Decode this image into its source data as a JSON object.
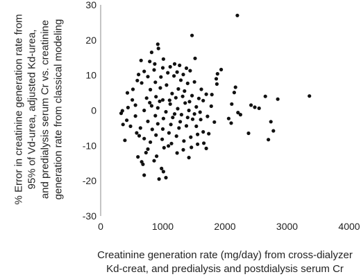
{
  "chart_data": {
    "type": "scatter",
    "title": "",
    "xlabel_lines": [
      "Creatinine generation rate (mg/day) from cross-dialyzer",
      "Kd-creat, and predialysis and postdialysis serum Cr"
    ],
    "ylabel_lines": [
      "% Error in creatinine generation rate from",
      "95% of Vd-urea, adjusted Kd-urea,",
      "and predialysis serum Cr vs. creatinine",
      "generation rate from classical modeling"
    ],
    "xlim": [
      0,
      4000
    ],
    "ylim": [
      -30,
      30
    ],
    "x_ticks": [
      0,
      1000,
      2000,
      3000,
      4000
    ],
    "y_ticks": [
      -30,
      -20,
      -10,
      0,
      10,
      20,
      30
    ],
    "grid": false,
    "legend": "none",
    "marker_color": "#111111",
    "points": [
      [
        2200,
        27
      ],
      [
        1470,
        21.3
      ],
      [
        920,
        18.8
      ],
      [
        930,
        17.6
      ],
      [
        820,
        16.5
      ],
      [
        790,
        13.9
      ],
      [
        1010,
        14.6
      ],
      [
        1520,
        14.8
      ],
      [
        650,
        14.2
      ],
      [
        1190,
        13.2
      ],
      [
        1270,
        12.8
      ],
      [
        1380,
        12.0
      ],
      [
        1940,
        11.6
      ],
      [
        1880,
        10.4
      ],
      [
        1860,
        9.0
      ],
      [
        1870,
        7.5
      ],
      [
        2170,
        6.6
      ],
      [
        2150,
        5.1
      ],
      [
        2110,
        1.8
      ],
      [
        2650,
        4.0
      ],
      [
        2850,
        3.2
      ],
      [
        3360,
        4.1
      ],
      [
        2420,
        1.5
      ],
      [
        2480,
        0.9
      ],
      [
        2550,
        0.6
      ],
      [
        2210,
        -0.6
      ],
      [
        2250,
        -1.2
      ],
      [
        2060,
        -2.3
      ],
      [
        2100,
        -3.6
      ],
      [
        2380,
        -6.5
      ],
      [
        2740,
        -3.2
      ],
      [
        2780,
        -5.8
      ],
      [
        2700,
        -8.3
      ],
      [
        350,
        -0.1
      ],
      [
        330,
        -0.8
      ],
      [
        360,
        -4.0
      ],
      [
        390,
        -8.5
      ],
      [
        420,
        -2.8
      ],
      [
        430,
        5.0
      ],
      [
        510,
        3.0
      ],
      [
        560,
        -1.6
      ],
      [
        580,
        -6.4
      ],
      [
        600,
        -13.2
      ],
      [
        620,
        -7.2
      ],
      [
        660,
        -14.6
      ],
      [
        680,
        -15.3
      ],
      [
        700,
        -18.4
      ],
      [
        730,
        -12.0
      ],
      [
        760,
        -11.0
      ],
      [
        860,
        -14.3
      ],
      [
        900,
        -13.0
      ],
      [
        940,
        -19.5
      ],
      [
        980,
        -16.5
      ],
      [
        1010,
        -17.4
      ],
      [
        1050,
        -19.1
      ],
      [
        1020,
        -10.6
      ],
      [
        1090,
        -10.1
      ],
      [
        1140,
        -9.4
      ],
      [
        1230,
        -12.1
      ],
      [
        1330,
        -11.2
      ],
      [
        1420,
        -13.4
      ],
      [
        1460,
        -10.5
      ],
      [
        1560,
        -9.6
      ],
      [
        1660,
        -9.3
      ],
      [
        1700,
        -10.8
      ],
      [
        1740,
        -6.6
      ],
      [
        1830,
        -3.3
      ],
      [
        1780,
        1.2
      ],
      [
        1790,
        4.5
      ],
      [
        700,
        0.0
      ],
      [
        820,
        1.3
      ],
      [
        880,
        -1.5
      ],
      [
        950,
        2.6
      ],
      [
        1050,
        -0.4
      ],
      [
        1120,
        1.8
      ],
      [
        1160,
        -2.0
      ],
      [
        1240,
        0.5
      ],
      [
        1300,
        -1.2
      ],
      [
        1360,
        2.1
      ],
      [
        1420,
        0.0
      ],
      [
        1480,
        -2.5
      ],
      [
        1540,
        1.0
      ],
      [
        1600,
        -0.5
      ],
      [
        1650,
        2.8
      ],
      [
        1540,
        -4.5
      ],
      [
        1470,
        4.2
      ],
      [
        1350,
        5.5
      ],
      [
        1250,
        6.1
      ],
      [
        1150,
        4.8
      ],
      [
        1060,
        7.2
      ],
      [
        960,
        6.4
      ],
      [
        880,
        8.0
      ],
      [
        800,
        5.9
      ],
      [
        740,
        3.5
      ],
      [
        660,
        7.8
      ],
      [
        610,
        10.2
      ],
      [
        700,
        11.1
      ],
      [
        860,
        11.5
      ],
      [
        970,
        9.5
      ],
      [
        1080,
        10.7
      ],
      [
        1180,
        9.8
      ],
      [
        1290,
        8.6
      ],
      [
        1400,
        7.7
      ],
      [
        1510,
        8.1
      ],
      [
        1620,
        6.0
      ],
      [
        1700,
        4.6
      ],
      [
        1720,
        -1.7
      ],
      [
        1650,
        -6.1
      ],
      [
        1560,
        -6.8
      ],
      [
        1450,
        -7.6
      ],
      [
        1340,
        -8.7
      ],
      [
        1220,
        -7.3
      ],
      [
        1100,
        -6.4
      ],
      [
        990,
        -8.2
      ],
      [
        890,
        -7.0
      ],
      [
        800,
        -9.0
      ],
      [
        700,
        -8.0
      ],
      [
        640,
        -5.0
      ],
      [
        560,
        1.5
      ],
      [
        480,
        -4.5
      ],
      [
        440,
        0.8
      ],
      [
        520,
        6.0
      ],
      [
        590,
        8.5
      ],
      [
        760,
        -3.1
      ],
      [
        830,
        -5.4
      ],
      [
        920,
        -3.8
      ],
      [
        1000,
        -5.3
      ],
      [
        1130,
        -4.0
      ],
      [
        1260,
        -5.0
      ],
      [
        1380,
        -4.4
      ],
      [
        1610,
        -2.6
      ],
      [
        790,
        2.2
      ],
      [
        890,
        3.9
      ],
      [
        1000,
        3.0
      ],
      [
        1110,
        2.9
      ],
      [
        1210,
        3.6
      ],
      [
        1320,
        4.0
      ],
      [
        1430,
        2.5
      ],
      [
        1580,
        3.4
      ],
      [
        920,
        0.7
      ],
      [
        1010,
        -2.3
      ],
      [
        1190,
        -1.0
      ],
      [
        1280,
        -3.2
      ],
      [
        1400,
        -2.0
      ],
      [
        1510,
        -1.0
      ],
      [
        760,
        9.6
      ],
      [
        870,
        13.2
      ],
      [
        1000,
        12.1
      ],
      [
        1120,
        12.4
      ],
      [
        1230,
        10.9
      ],
      [
        1330,
        10.2
      ],
      [
        1440,
        11.3
      ]
    ]
  }
}
